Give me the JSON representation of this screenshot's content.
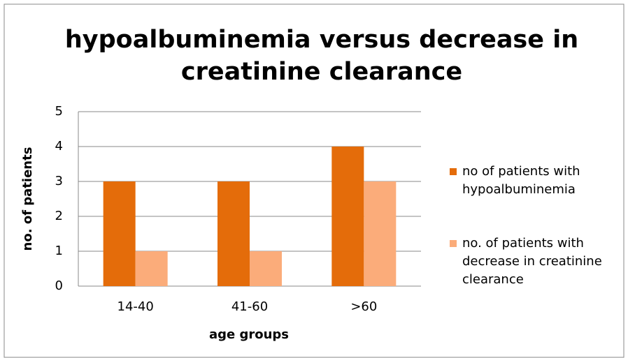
{
  "chart_data": {
    "type": "bar",
    "title": "hypoalbuminemia versus decrease in creatinine clearance",
    "x_label": "age groups",
    "y_label": "no. of patients",
    "categories": [
      "14-40",
      "41-60",
      ">60"
    ],
    "series": [
      {
        "name": "no of patients with hypoalbuminemia",
        "color": "#e46c0a",
        "values": [
          3,
          3,
          4
        ]
      },
      {
        "name": "no. of patients with decrease in creatinine clearance",
        "color": "#fbac7a",
        "values": [
          1,
          1,
          3
        ]
      }
    ],
    "ylim": [
      0,
      5
    ],
    "yticks": [
      0,
      1,
      2,
      3,
      4,
      5
    ],
    "grid": true,
    "legend": "right"
  }
}
